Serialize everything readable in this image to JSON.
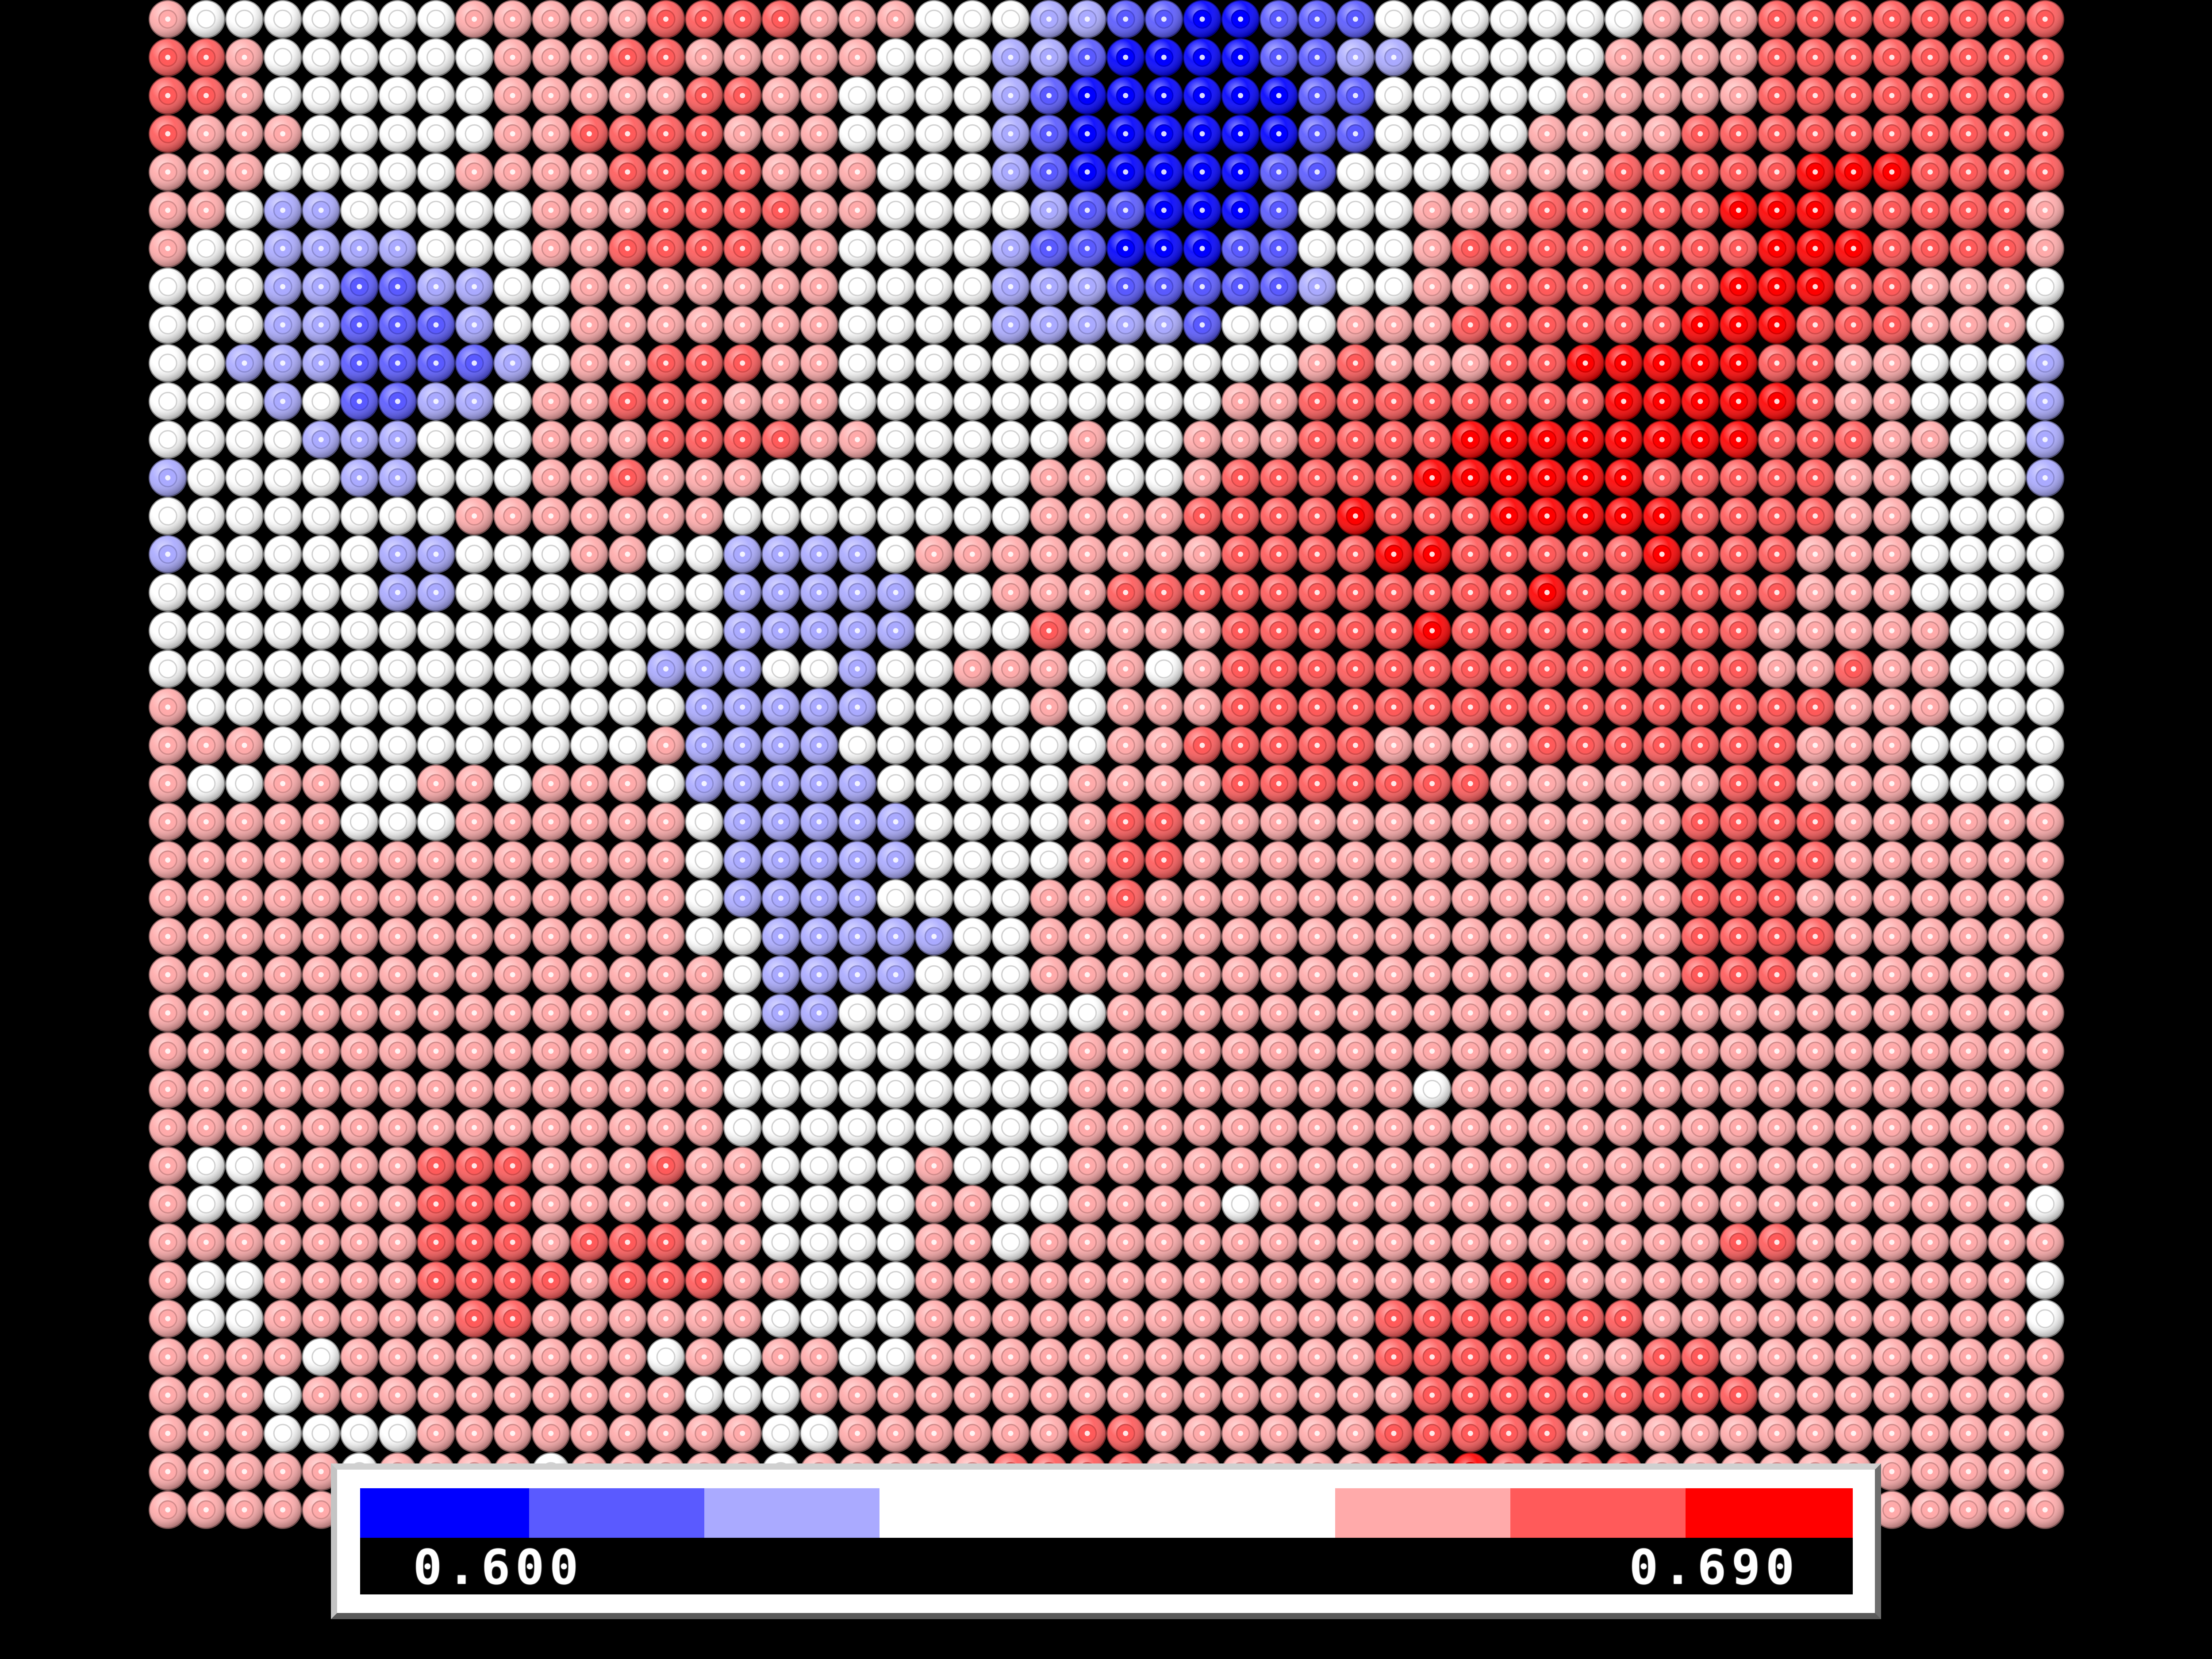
{
  "chart_data": {
    "type": "heatmap",
    "title": "",
    "colorscale": {
      "min": 0.6,
      "max": 0.69,
      "min_label": "0.600",
      "max_label": "0.690",
      "bins": [
        {
          "level": 0,
          "color": "#0000ff"
        },
        {
          "level": 1,
          "color": "#5a5aff"
        },
        {
          "level": 2,
          "color": "#aaaaff"
        },
        {
          "level": 3,
          "color": "#ffffff"
        },
        {
          "level": 4,
          "color": "#ffaaaa"
        },
        {
          "level": 5,
          "color": "#ff5a5a"
        },
        {
          "level": 6,
          "color": "#ff0000"
        }
      ]
    },
    "grid": {
      "rows": 40,
      "cols": 50
    },
    "rows": [
      "43333333444445555444333221100111333333344455555555",
      "55433333344455444443332210000112233333444455555555",
      "55433333344444554433332100000011333334444455555555",
      "54443333344555544433332100000011333344445555555555",
      "44433333444455554443332100000113333444555556665555",
      "44322333334445555443333211000133344455555666555554",
      "43322223334455554433332110001133345555555566655554",
      "33322112233444444433332221111123344555555666554443",
      "33322111233444444433332222213334445555556665554443",
      "33222111123445554433333333333345444556666655443332",
      "33323112234455544433333333334455555555666665443332",
      "33332223334445555443333343344455556666666655544332",
      "23333223334454443333333443345555566666655555443332",
      "33333333444444433333333444455556555666665555443333",
      "23333322333443322223444444445555665555565554443333",
      "33333322333333322222334445555555555565555554443333",
      "33333333333333322222333544445555565555555544444333",
      "33333333333332223323344434345555555555555544544333",
      "43333333333333222223333434445555555555555555444333",
      "44433333333334222233333334455555444455555554443333",
      "43344334434443222223333344445555555444444554443333",
      "44444333444444322222333345544444444444445555444444",
      "44444444444444322222333345544444444444445555444444",
      "44444444444444322223333445444444444444445554444444",
      "44444444444444332222233444444444444444445555444444",
      "44444444444444432222333444444444444444445554444444",
      "44444444444444432233333334444444444444444444444444",
      "44444444444444433333333344444444444444444444444444",
      "44444444444444433333333344444444434444444444444444",
      "44444444444444433333333344444444444444444444444444",
      "43344445554445443333433344444444444444444444444444",
      "43344445554444443333443344443444444444444444444443",
      "44444445554555443333443444444444444444444554444444",
      "43344445555455544333444444444444444554444444444443",
      "43344444554444443333444444444444555555544444444443",
      "44443444444443434433444444444444555554455444444444",
      "44434444444444333444444444444444455555555544444444",
      "44433334444444443344444455444444555554444444444444",
      "44444344443444443444445555444444556555544444444444",
      "44444444444444444444444445544444445555444444444444"
    ]
  }
}
